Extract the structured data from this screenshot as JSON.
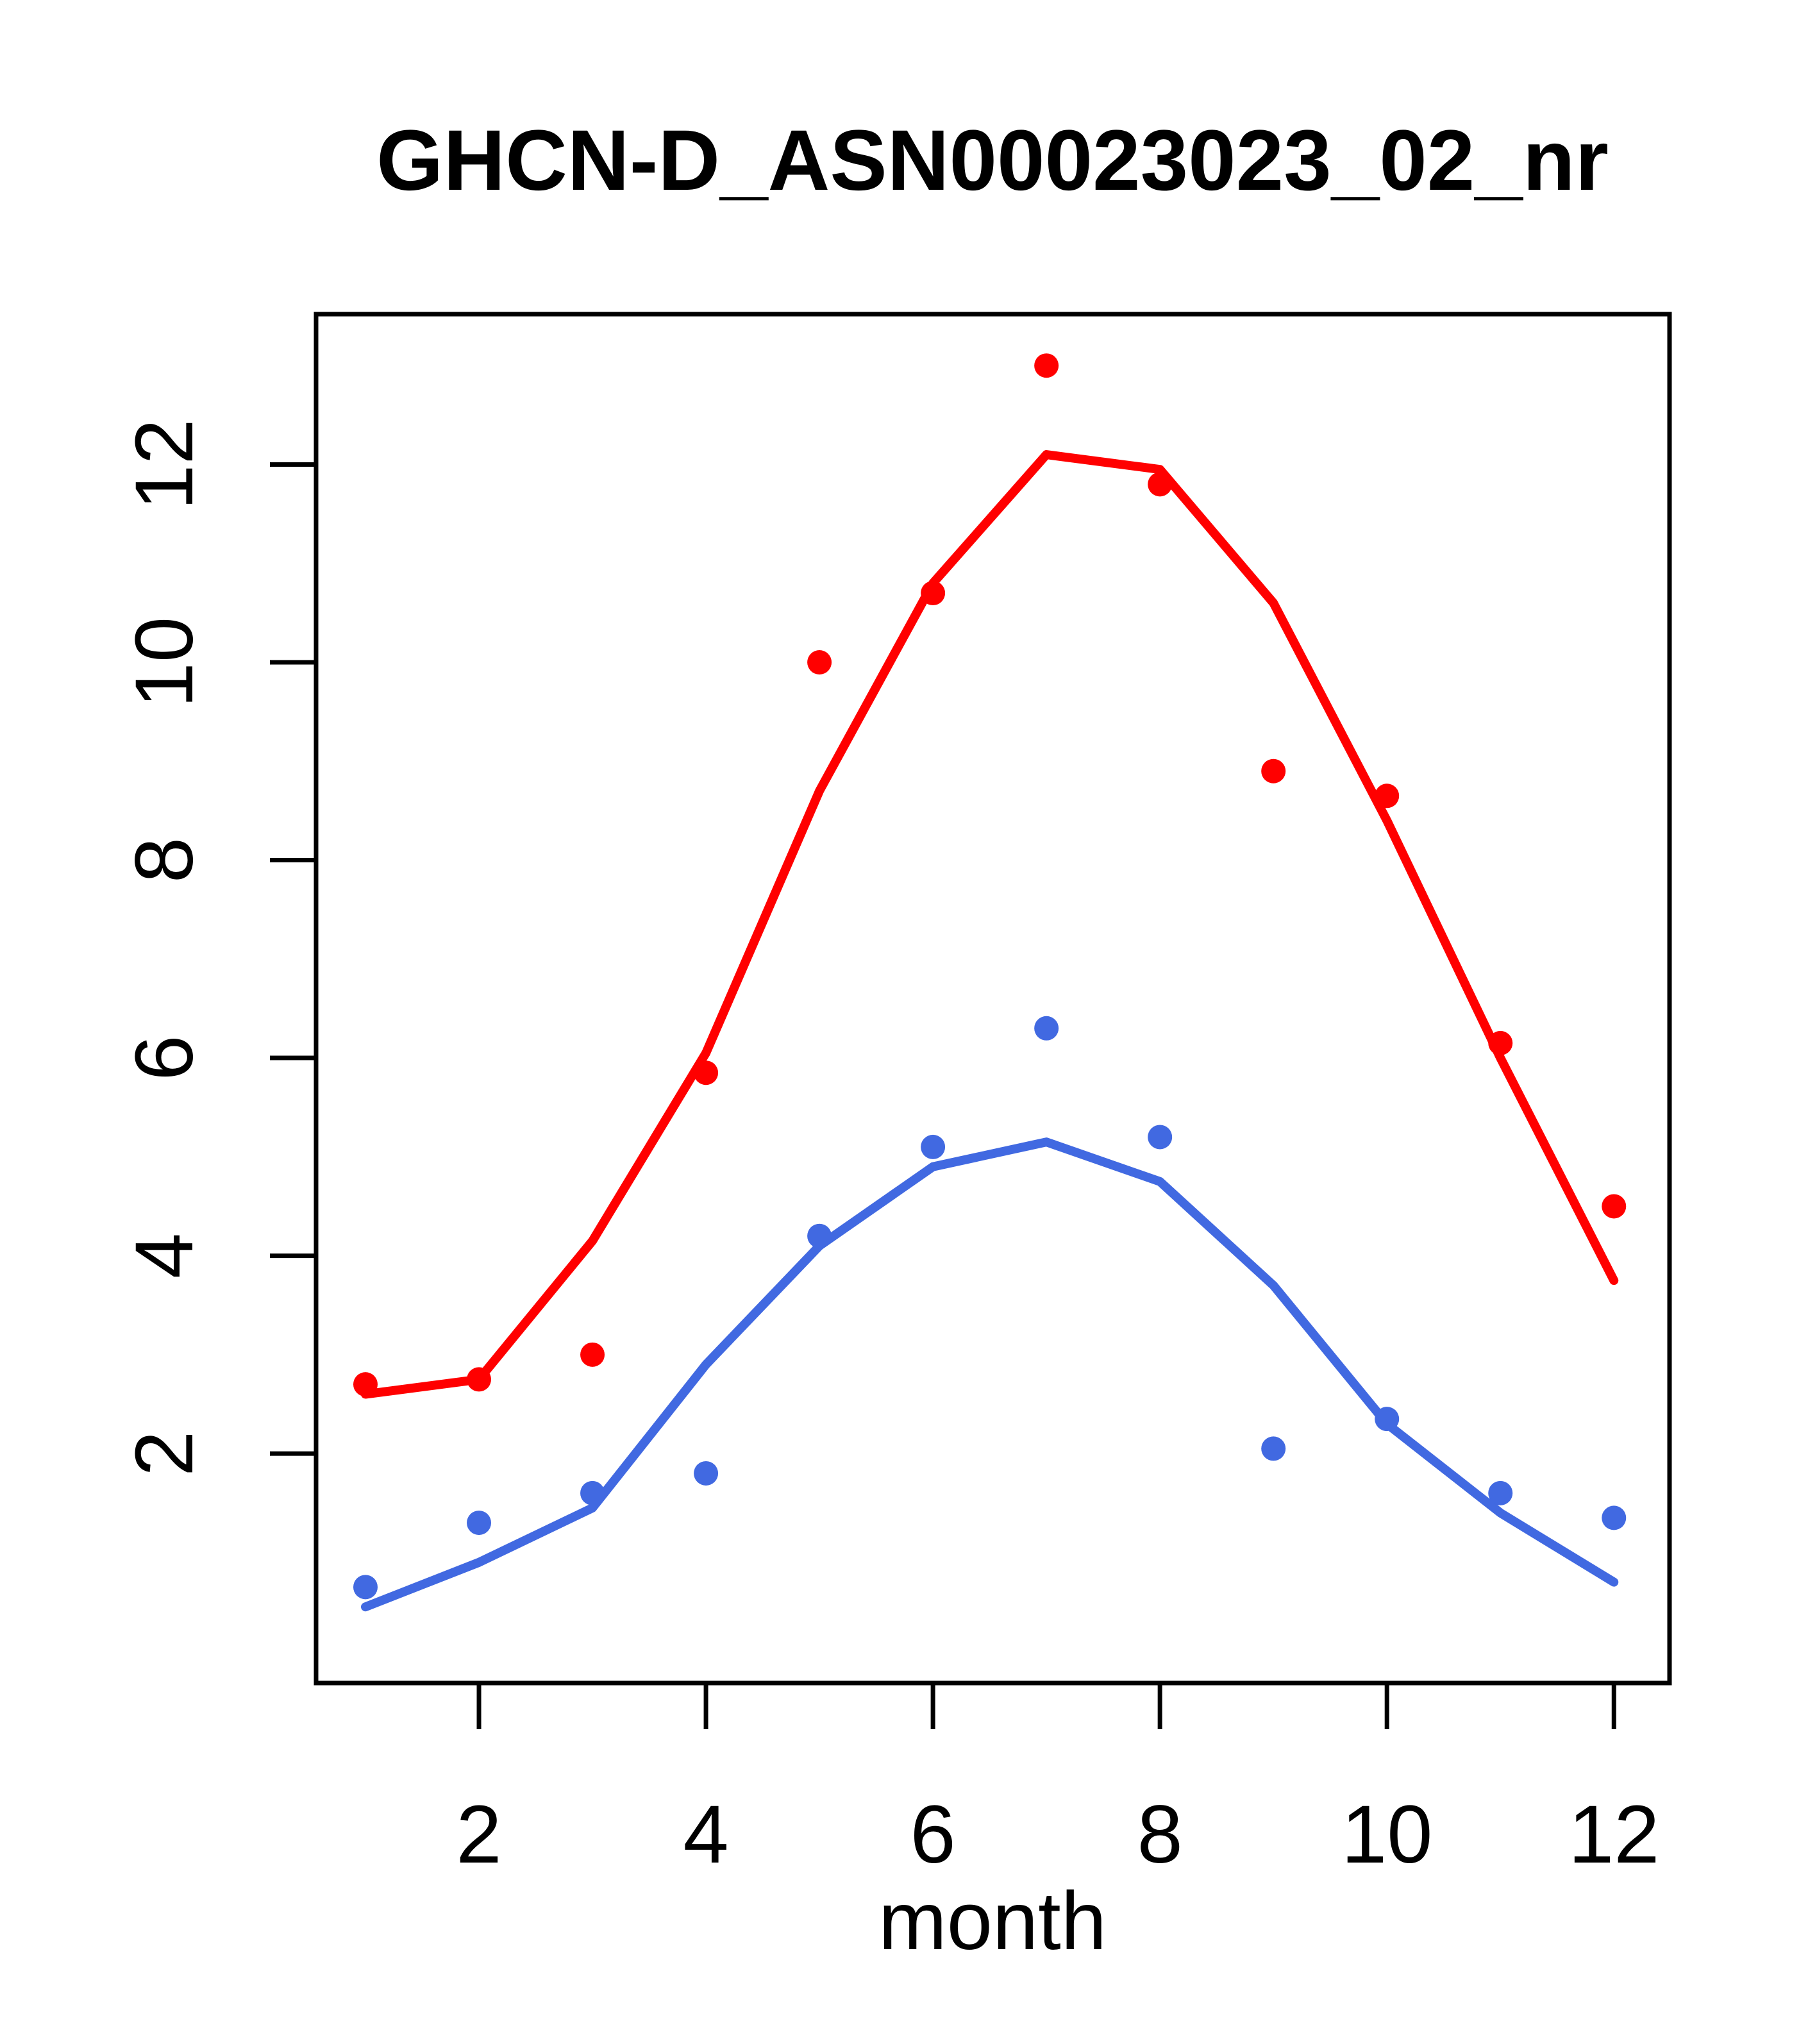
{
  "title": "GHCN-D_ASN00023023_02_nr",
  "xlabel": "month",
  "colors": {
    "red_series": "#FF0000",
    "blue_series": "#4169E1",
    "axis": "#000000",
    "background": "#FFFFFF"
  },
  "chart_data": {
    "type": "scatter",
    "title": "GHCN-D_ASN00023023_02_nr",
    "xlabel": "month",
    "ylabel": "",
    "x": [
      1,
      2,
      3,
      4,
      5,
      6,
      7,
      8,
      9,
      10,
      11,
      12
    ],
    "x_ticks": [
      2,
      4,
      6,
      8,
      10,
      12
    ],
    "y_ticks": [
      2,
      4,
      6,
      8,
      10,
      12
    ],
    "xlim": [
      0.565,
      12.49
    ],
    "ylim": [
      -0.32,
      13.52
    ],
    "grid": false,
    "legend": false,
    "series": [
      {
        "name": "red-lowess-line",
        "kind": "line",
        "color": "#FF0000",
        "values": [
          2.6,
          2.75,
          4.15,
          6.05,
          8.7,
          10.8,
          12.1,
          11.95,
          10.6,
          8.4,
          6.0,
          3.75
        ]
      },
      {
        "name": "blue-lowess-line",
        "kind": "line",
        "color": "#4169E1",
        "values": [
          0.45,
          0.9,
          1.45,
          2.9,
          4.1,
          4.9,
          5.15,
          4.75,
          3.7,
          2.3,
          1.4,
          0.7
        ]
      },
      {
        "name": "red-points",
        "kind": "points",
        "color": "#FF0000",
        "values": [
          2.7,
          2.75,
          3.0,
          5.85,
          10.0,
          10.7,
          13.0,
          11.8,
          8.9,
          8.65,
          6.15,
          4.5
        ]
      },
      {
        "name": "blue-points",
        "kind": "points",
        "color": "#4169E1",
        "values": [
          0.65,
          1.3,
          1.6,
          1.8,
          4.2,
          5.1,
          6.3,
          5.2,
          2.05,
          2.35,
          1.6,
          1.35
        ]
      }
    ]
  }
}
